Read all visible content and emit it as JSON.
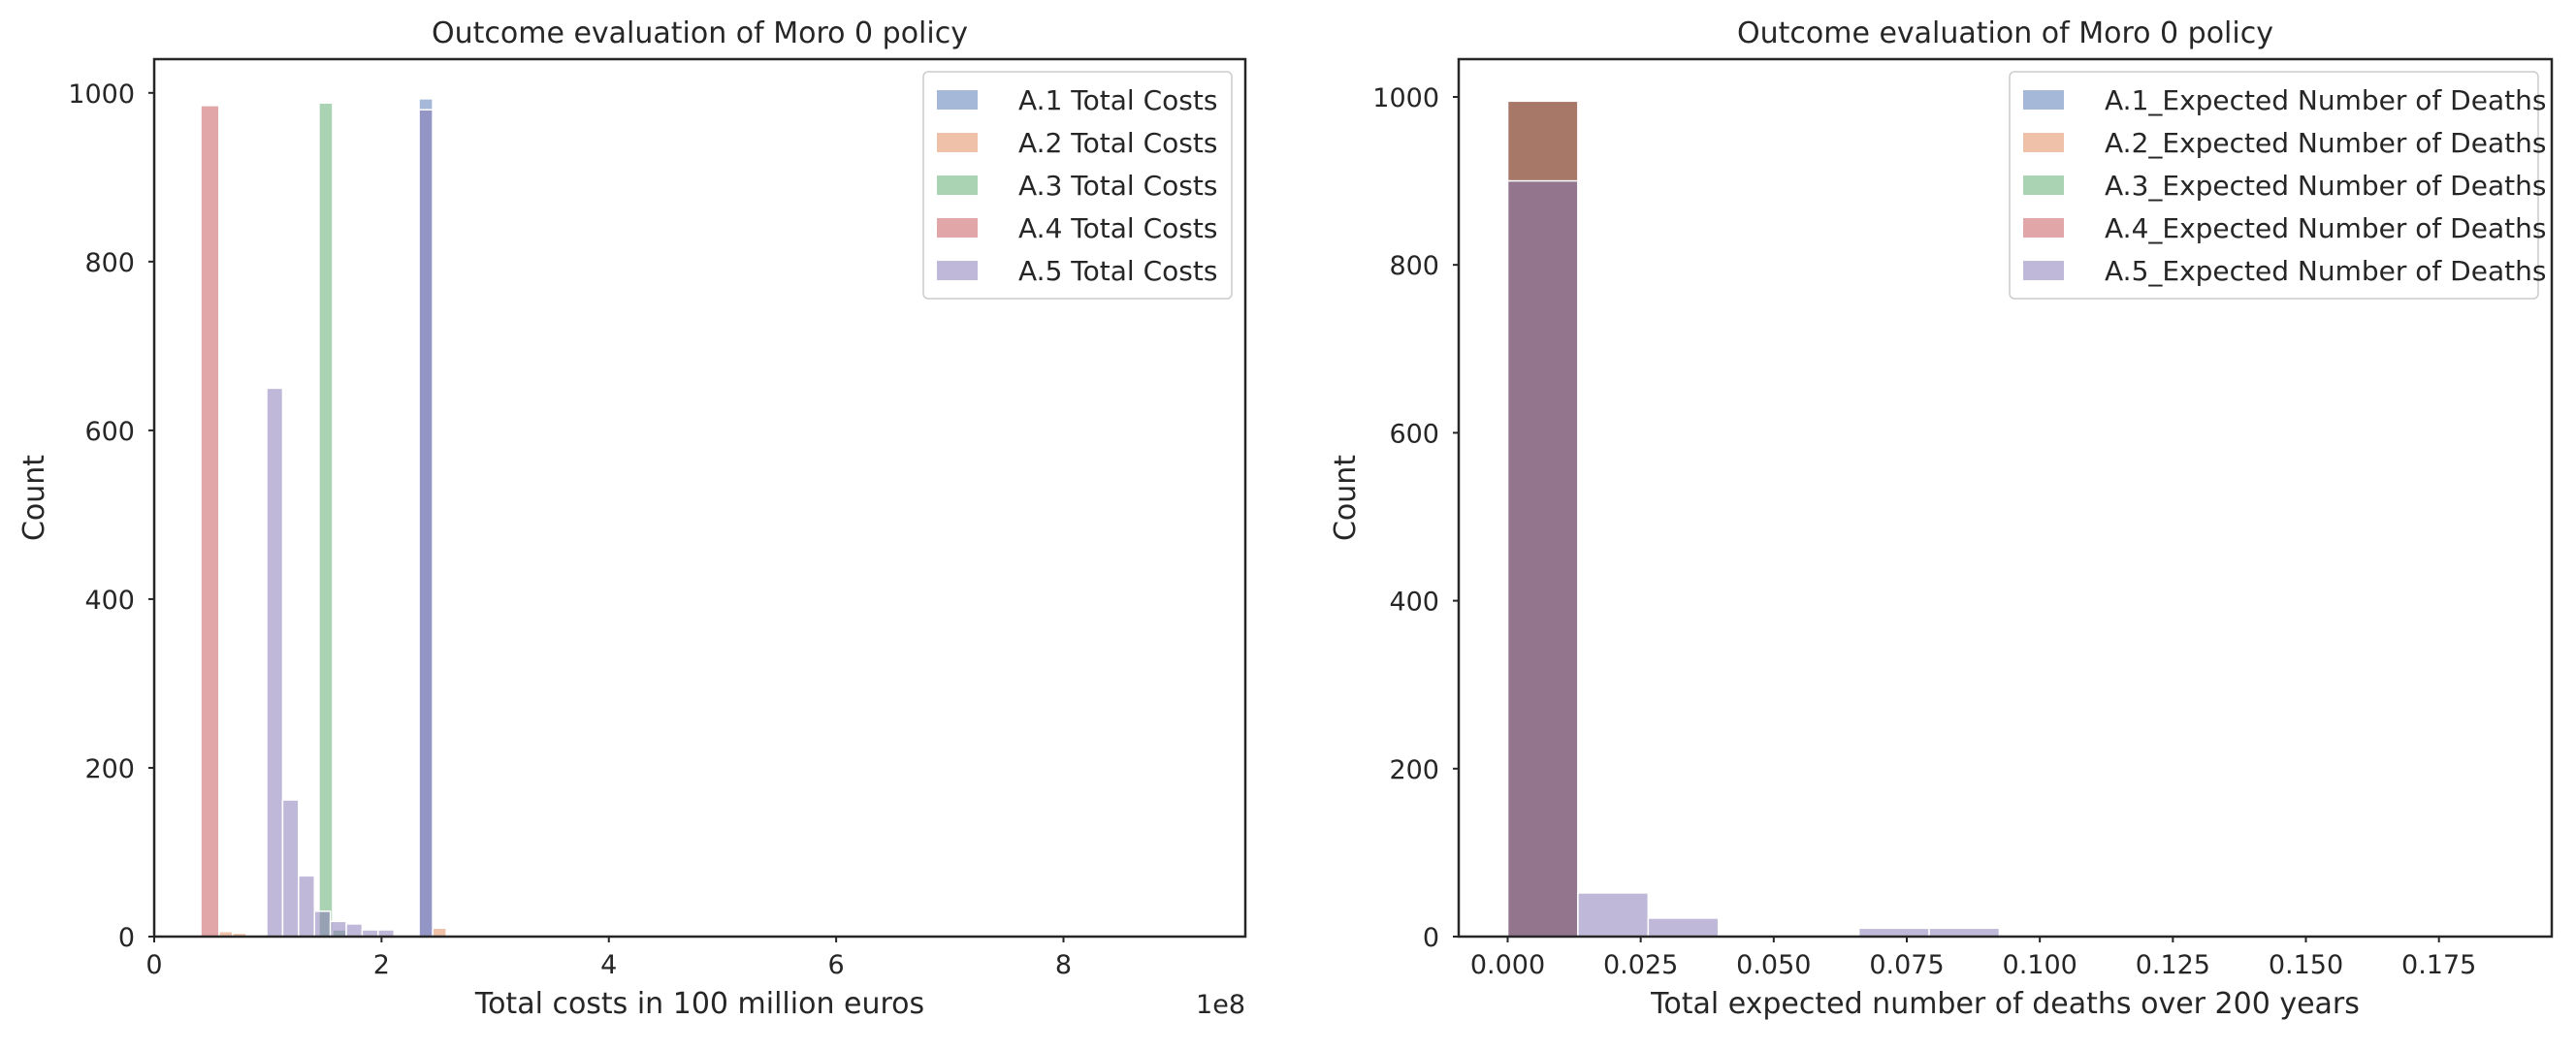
{
  "figure": {
    "colors": {
      "blue": "#4c72b0",
      "orange": "#dd8452",
      "green": "#55a868",
      "red": "#c44e52",
      "purple": "#8172b3"
    },
    "bar_alpha": 0.5
  },
  "chart_data": [
    {
      "type": "bar",
      "title": "Outcome evaluation of Moro 0 policy",
      "xlabel": "Total costs in 100 million euros",
      "ylabel": "Count",
      "x_offset_label": "1e8",
      "xlim": [
        0,
        9.6
      ],
      "ylim": [
        0,
        1040
      ],
      "xticks": [
        0,
        2,
        4,
        6,
        8
      ],
      "xtick_labels": [
        "0",
        "2",
        "4",
        "6",
        "8"
      ],
      "yticks": [
        0,
        200,
        400,
        600,
        800,
        1000
      ],
      "ytick_labels": [
        "0",
        "200",
        "400",
        "600",
        "800",
        "1000"
      ],
      "grid": false,
      "legend_position": "top-right",
      "series": [
        {
          "name": "A.1 Total Costs",
          "color": "blue",
          "bins": [
            [
              2.33,
              2.45,
              993
            ]
          ]
        },
        {
          "name": "A.2 Total Costs",
          "color": "orange",
          "bins": [
            [
              0.57,
              0.69,
              6
            ],
            [
              0.69,
              0.81,
              4
            ],
            [
              2.45,
              2.57,
              10
            ]
          ]
        },
        {
          "name": "A.3 Total Costs",
          "color": "green",
          "bins": [
            [
              1.45,
              1.57,
              988
            ],
            [
              1.57,
              1.69,
              8
            ]
          ]
        },
        {
          "name": "A.4 Total Costs",
          "color": "red",
          "bins": [
            [
              0.41,
              0.57,
              985
            ]
          ]
        },
        {
          "name": "A.5 Total Costs",
          "color": "purple",
          "bins": [
            [
              0.99,
              1.13,
              650
            ],
            [
              1.13,
              1.27,
              162
            ],
            [
              1.27,
              1.41,
              72
            ],
            [
              1.41,
              1.55,
              30
            ],
            [
              1.55,
              1.69,
              18
            ],
            [
              1.69,
              1.83,
              15
            ],
            [
              1.83,
              1.97,
              8
            ],
            [
              1.97,
              2.11,
              8
            ],
            [
              2.33,
              2.45,
              980
            ]
          ]
        }
      ]
    },
    {
      "type": "bar",
      "title": "Outcome evaluation of Moro 0 policy",
      "xlabel": "Total expected number of deaths over 200 years",
      "ylabel": "Count",
      "xlim": [
        -0.0092,
        0.1962
      ],
      "ylim": [
        0,
        1045
      ],
      "xticks": [
        0,
        0.025,
        0.05,
        0.075,
        0.1,
        0.125,
        0.15,
        0.175
      ],
      "xtick_labels": [
        "0.000",
        "0.025",
        "0.050",
        "0.075",
        "0.100",
        "0.125",
        "0.150",
        "0.175"
      ],
      "yticks": [
        0,
        200,
        400,
        600,
        800,
        1000
      ],
      "ytick_labels": [
        "0",
        "200",
        "400",
        "600",
        "800",
        "1000"
      ],
      "grid": false,
      "legend_position": "top-right",
      "series": [
        {
          "name": "A.1_Expected Number of Deaths",
          "color": "blue",
          "bins": [
            [
              0,
              0.0132,
              995
            ]
          ]
        },
        {
          "name": "A.2_Expected Number of Deaths",
          "color": "orange",
          "bins": [
            [
              0,
              0.0132,
              995
            ]
          ]
        },
        {
          "name": "A.3_Expected Number of Deaths",
          "color": "green",
          "bins": [
            [
              0,
              0.0132,
              995
            ]
          ]
        },
        {
          "name": "A.4_Expected Number of Deaths",
          "color": "red",
          "bins": [
            [
              0,
              0.0132,
              995
            ]
          ]
        },
        {
          "name": "A.5_Expected Number of Deaths",
          "color": "purple",
          "bins": [
            [
              0,
              0.0132,
              900
            ],
            [
              0.0132,
              0.0264,
              52
            ],
            [
              0.0264,
              0.0396,
              22
            ],
            [
              0.066,
              0.0792,
              10
            ],
            [
              0.0792,
              0.0924,
              10
            ]
          ]
        }
      ]
    }
  ]
}
